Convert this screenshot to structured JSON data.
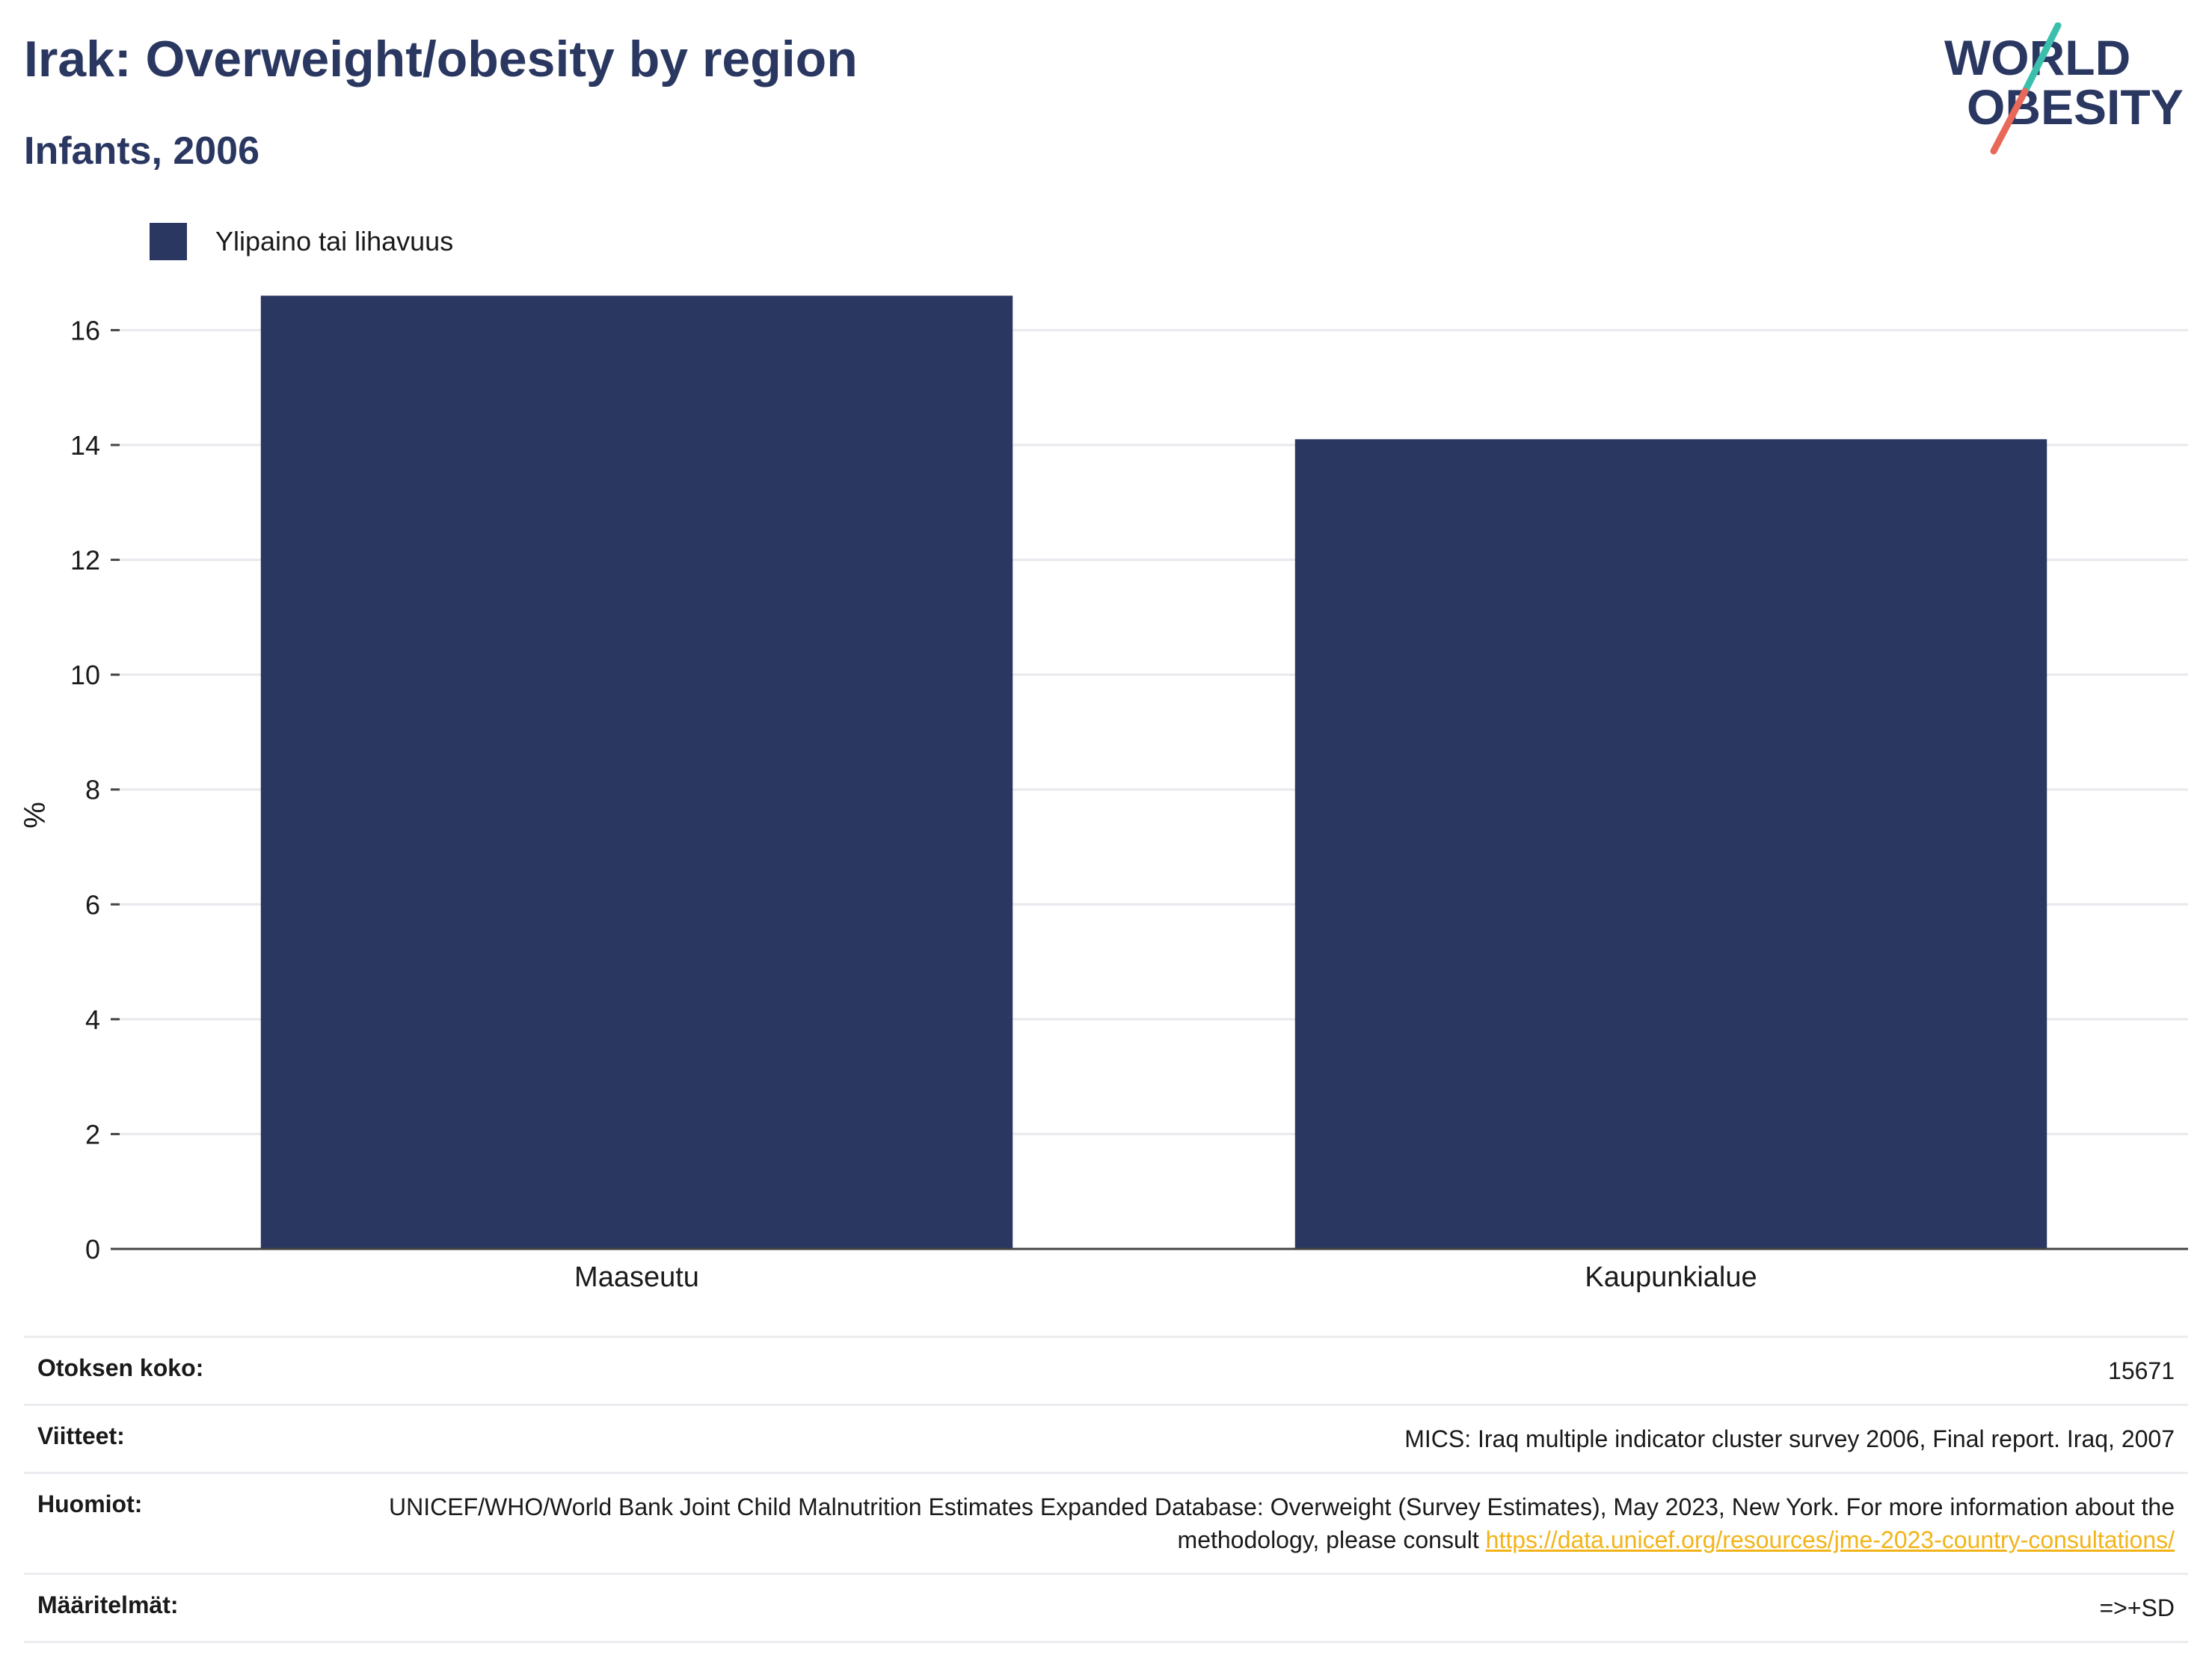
{
  "header": {
    "title": "Irak: Overweight/obesity by region",
    "subtitle": "Infants, 2006"
  },
  "logo": {
    "line1": "WORLD",
    "line2": "OBESITY"
  },
  "colors": {
    "bar": "#2a3761",
    "logo_text": "#2a3761",
    "logo_slash_top": "#3bbfad",
    "logo_slash_bottom": "#e8695a",
    "link": "#f2b418"
  },
  "chart_data": {
    "type": "bar",
    "ylabel": "%",
    "xlabel": "",
    "ylim": [
      0,
      16.8
    ],
    "yticks": [
      0,
      2,
      4,
      6,
      8,
      10,
      12,
      14,
      16
    ],
    "grid": true,
    "legend_position": "top-left",
    "categories": [
      "Maaseutu",
      "Kaupunkialue"
    ],
    "series": [
      {
        "name": "Ylipaino tai lihavuus",
        "values": [
          16.6,
          14.1
        ]
      }
    ]
  },
  "info": {
    "sample_label": "Otoksen koko:",
    "sample_value": "15671",
    "refs_label": "Viitteet:",
    "refs_value": "MICS: Iraq multiple indicator cluster survey 2006, Final report. Iraq, 2007",
    "notes_label": "Huomiot:",
    "notes_text": "UNICEF/WHO/World Bank Joint Child Malnutrition Estimates Expanded Database: Overweight (Survey Estimates), May 2023, New York. For more information about the methodology, please consult",
    "notes_link": "https://data.unicef.org/resources/jme-2023-country-consultations/",
    "defs_label": "Määritelmät:",
    "defs_value": "=>+SD"
  }
}
